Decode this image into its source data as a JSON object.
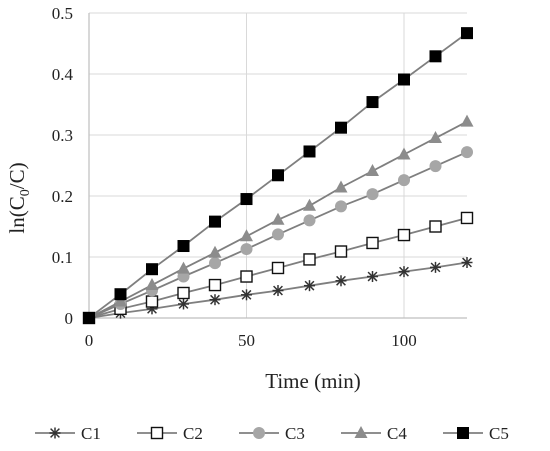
{
  "chart_data": {
    "type": "line",
    "xlabel": "Time (min)",
    "ylabel": {
      "prefix": "ln(C",
      "sub": "0",
      "suffix": "/C)"
    },
    "xlim": [
      0,
      120
    ],
    "ylim": [
      0,
      0.5
    ],
    "x_ticks": [
      0,
      50,
      100
    ],
    "y_ticks": [
      0,
      0.1,
      0.2,
      0.3,
      0.4,
      0.5
    ],
    "x_tick_labels": [
      "0",
      "50",
      "100"
    ],
    "y_tick_labels": [
      "0",
      "0.1",
      "0.2",
      "0.3",
      "0.4",
      "0.5"
    ],
    "grid": true,
    "legend_position": "bottom",
    "x": [
      0,
      10,
      20,
      30,
      40,
      50,
      60,
      70,
      80,
      90,
      100,
      110,
      120
    ],
    "series": [
      {
        "name": "C1",
        "marker": "asterisk",
        "color": "#333333",
        "line_color": "#7f7f7f",
        "values": [
          0,
          0.008,
          0.015,
          0.023,
          0.03,
          0.038,
          0.045,
          0.053,
          0.061,
          0.068,
          0.076,
          0.083,
          0.091
        ]
      },
      {
        "name": "C2",
        "marker": "square-open",
        "color": "#111111",
        "line_color": "#7f7f7f",
        "values": [
          0,
          0.015,
          0.027,
          0.041,
          0.054,
          0.068,
          0.082,
          0.096,
          0.109,
          0.123,
          0.136,
          0.15,
          0.164
        ]
      },
      {
        "name": "C3",
        "marker": "circle",
        "color": "#a6a6a6",
        "line_color": "#7f7f7f",
        "values": [
          0,
          0.023,
          0.045,
          0.068,
          0.09,
          0.113,
          0.137,
          0.16,
          0.183,
          0.203,
          0.226,
          0.249,
          0.272
        ]
      },
      {
        "name": "C4",
        "marker": "triangle",
        "color": "#8c8c8c",
        "line_color": "#7f7f7f",
        "values": [
          0,
          0.027,
          0.054,
          0.081,
          0.107,
          0.134,
          0.161,
          0.184,
          0.214,
          0.241,
          0.268,
          0.295,
          0.322
        ]
      },
      {
        "name": "C5",
        "marker": "square-filled",
        "color": "#000000",
        "line_color": "#7f7f7f",
        "values": [
          0,
          0.039,
          0.08,
          0.118,
          0.158,
          0.195,
          0.234,
          0.273,
          0.312,
          0.354,
          0.391,
          0.429,
          0.467
        ]
      }
    ]
  }
}
